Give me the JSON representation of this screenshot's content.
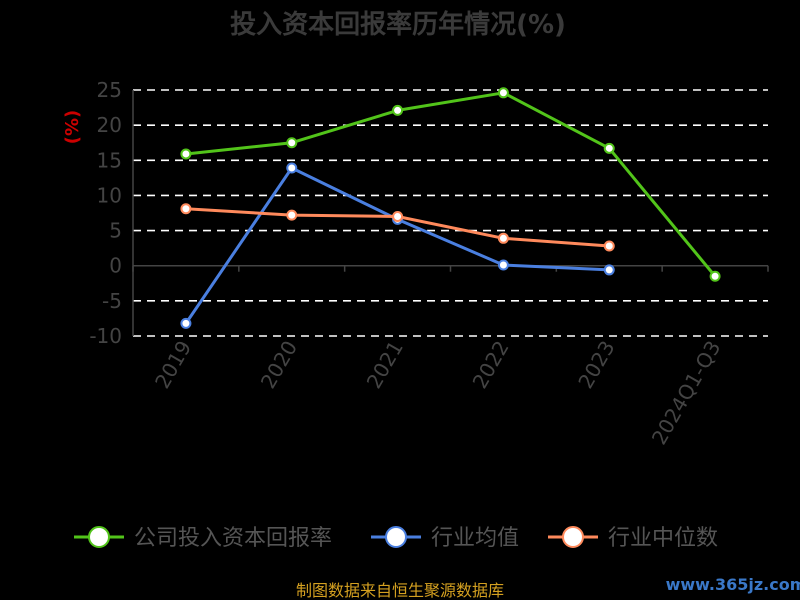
{
  "chart_data": {
    "type": "line",
    "title": "投入资本回报率历年情况(%)",
    "ylabel": "(%)",
    "xlabel": "",
    "categories": [
      "2019",
      "2020",
      "2021",
      "2022",
      "2023",
      "2024Q1-Q3"
    ],
    "yticks": [
      "25",
      "20",
      "15",
      "10",
      "5",
      "0",
      "-5",
      "-10"
    ],
    "ylim": [
      -10,
      25
    ],
    "grid": true,
    "legend_position": "bottom",
    "series": [
      {
        "name": "公司投入资本回报率",
        "color": "#52c41a",
        "values": [
          15.9,
          17.5,
          22.1,
          24.6,
          16.7,
          -1.5
        ]
      },
      {
        "name": "行业均值",
        "color": "#4a7fe0",
        "values": [
          -8.2,
          13.9,
          6.6,
          0.1,
          -0.6,
          null
        ]
      },
      {
        "name": "行业中位数",
        "color": "#ff8a5c",
        "values": [
          8.1,
          7.2,
          7.0,
          3.9,
          2.8,
          null
        ]
      }
    ]
  },
  "footer": {
    "source": "制图数据来自恒生聚源数据库",
    "watermark": "www.365jz.com"
  }
}
